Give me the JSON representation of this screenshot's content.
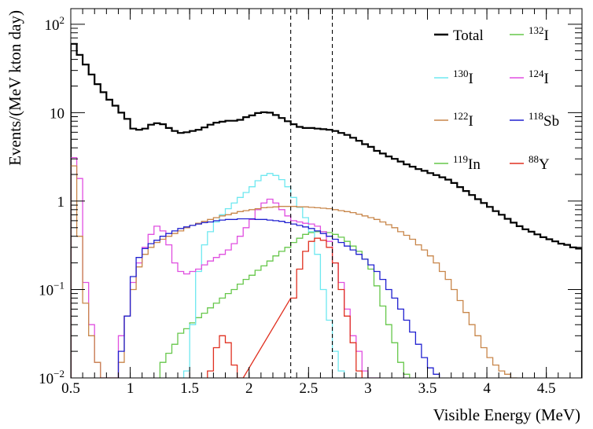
{
  "chart_data": {
    "type": "line",
    "title": "",
    "xlabel": "Visible Energy (MeV)",
    "ylabel": "Events/(MeV kton day)",
    "xlim": [
      0.5,
      4.8
    ],
    "ylim": [
      0.01,
      150
    ],
    "yscale": "log",
    "x_ticks": [
      "0.5",
      "1",
      "1.5",
      "2",
      "2.5",
      "3",
      "3.5",
      "4",
      "4.5"
    ],
    "y_ticks": [
      {
        "base": "10",
        "exp": "−2"
      },
      {
        "base": "10",
        "exp": "−1"
      },
      {
        "base": "1",
        "exp": ""
      },
      {
        "base": "10",
        "exp": ""
      },
      {
        "base": "10",
        "exp": "2"
      }
    ],
    "vlines": [
      2.35,
      2.7
    ],
    "legend_position": "top-right",
    "series": [
      {
        "name": "Total",
        "sup": "",
        "base": "Total",
        "color": "#000000",
        "x": [
          0.5,
          0.55,
          0.6,
          0.65,
          0.7,
          0.75,
          0.8,
          0.85,
          0.9,
          0.95,
          1.0,
          1.05,
          1.1,
          1.15,
          1.2,
          1.25,
          1.3,
          1.35,
          1.4,
          1.45,
          1.5,
          1.55,
          1.6,
          1.65,
          1.7,
          1.75,
          1.8,
          1.85,
          1.9,
          1.95,
          2.0,
          2.05,
          2.1,
          2.15,
          2.2,
          2.25,
          2.3,
          2.35,
          2.4,
          2.45,
          2.5,
          2.55,
          2.6,
          2.65,
          2.7,
          2.75,
          2.8,
          2.85,
          2.9,
          2.95,
          3.0,
          3.05,
          3.1,
          3.15,
          3.2,
          3.25,
          3.3,
          3.35,
          3.4,
          3.45,
          3.5,
          3.55,
          3.6,
          3.65,
          3.7,
          3.75,
          3.8,
          3.85,
          3.9,
          3.95,
          4.0,
          4.05,
          4.1,
          4.15,
          4.2,
          4.25,
          4.3,
          4.35,
          4.4,
          4.45,
          4.5,
          4.55,
          4.6,
          4.65,
          4.7,
          4.75
        ],
        "y": [
          60,
          45,
          35,
          27,
          21,
          17,
          14,
          12,
          10,
          8.5,
          6.6,
          6.4,
          6.6,
          7.3,
          7.6,
          7.4,
          6.7,
          6.2,
          5.9,
          6.0,
          6.2,
          6.4,
          6.8,
          7.3,
          7.7,
          7.9,
          8.1,
          8.1,
          8.3,
          8.9,
          9.3,
          9.9,
          10.1,
          10.0,
          9.4,
          8.7,
          8.0,
          7.4,
          6.9,
          6.7,
          6.7,
          6.6,
          6.5,
          6.4,
          6.2,
          5.9,
          5.6,
          5.2,
          4.8,
          4.4,
          4.1,
          3.7,
          3.45,
          3.2,
          3.0,
          2.8,
          2.6,
          2.45,
          2.3,
          2.2,
          2.07,
          1.97,
          1.86,
          1.75,
          1.6,
          1.44,
          1.3,
          1.17,
          1.05,
          0.95,
          0.86,
          0.77,
          0.7,
          0.63,
          0.57,
          0.52,
          0.48,
          0.45,
          0.42,
          0.39,
          0.37,
          0.35,
          0.33,
          0.32,
          0.3,
          0.29
        ]
      },
      {
        "name": "132I",
        "sup": "132",
        "base": "I",
        "color": "#66c74a",
        "x": [
          1.25,
          1.3,
          1.35,
          1.4,
          1.45,
          1.5,
          1.55,
          1.6,
          1.65,
          1.7,
          1.75,
          1.8,
          1.85,
          1.9,
          1.95,
          2.0,
          2.05,
          2.1,
          2.15,
          2.2,
          2.25,
          2.3,
          2.35,
          2.4,
          2.45,
          2.5,
          2.55,
          2.6,
          2.65,
          2.7,
          2.75,
          2.8,
          2.85,
          2.9,
          2.95,
          3.0,
          3.05,
          3.1,
          3.15,
          3.2,
          3.25,
          3.3
        ],
        "y": [
          0.015,
          0.019,
          0.024,
          0.032,
          0.036,
          0.042,
          0.048,
          0.054,
          0.062,
          0.07,
          0.08,
          0.09,
          0.1,
          0.115,
          0.13,
          0.145,
          0.165,
          0.185,
          0.21,
          0.24,
          0.27,
          0.3,
          0.34,
          0.38,
          0.42,
          0.44,
          0.45,
          0.45,
          0.44,
          0.42,
          0.39,
          0.35,
          0.31,
          0.27,
          0.22,
          0.17,
          0.11,
          0.065,
          0.04,
          0.025,
          0.015,
          0.011
        ]
      },
      {
        "name": "130I",
        "sup": "130",
        "base": "I",
        "color": "#6ee8f0",
        "x": [
          1.45,
          1.5,
          1.55,
          1.6,
          1.65,
          1.7,
          1.75,
          1.8,
          1.85,
          1.9,
          1.95,
          2.0,
          2.05,
          2.1,
          2.15,
          2.2,
          2.25,
          2.3,
          2.35,
          2.4,
          2.45,
          2.5,
          2.55,
          2.6,
          2.65,
          2.7,
          2.75,
          2.8
        ],
        "y": [
          0.012,
          0.04,
          0.16,
          0.32,
          0.45,
          0.58,
          0.7,
          0.82,
          0.95,
          1.1,
          1.25,
          1.45,
          1.7,
          1.95,
          2.05,
          1.95,
          1.75,
          1.45,
          1.1,
          0.85,
          0.65,
          0.45,
          0.25,
          0.1,
          0.045,
          0.02,
          0.012,
          0.01
        ]
      },
      {
        "name": "124I",
        "sup": "124",
        "base": "I",
        "color": "#e04fe0",
        "x": [
          0.5,
          0.55,
          0.6,
          0.65,
          0.7,
          0.75,
          0.8,
          0.85,
          0.9,
          0.95,
          1.0,
          1.05,
          1.1,
          1.15,
          1.2,
          1.25,
          1.3,
          1.35,
          1.4,
          1.45,
          1.5,
          1.55,
          1.6,
          1.65,
          1.7,
          1.75,
          1.8,
          1.85,
          1.9,
          1.95,
          2.0,
          2.05,
          2.1,
          2.15,
          2.2,
          2.25,
          2.3,
          2.35,
          2.4,
          2.45,
          2.5,
          2.55,
          2.6,
          2.65,
          2.7,
          2.75,
          2.8,
          2.85,
          2.9,
          2.95,
          3.0,
          3.05
        ],
        "y": [
          3.1,
          1.8,
          0.12,
          0.04,
          0.015,
          0.01,
          0.01,
          0.01,
          0.03,
          0.05,
          0.12,
          0.2,
          0.3,
          0.42,
          0.52,
          0.46,
          0.32,
          0.2,
          0.16,
          0.15,
          0.16,
          0.17,
          0.19,
          0.21,
          0.23,
          0.25,
          0.28,
          0.33,
          0.4,
          0.5,
          0.62,
          0.8,
          0.95,
          1.05,
          0.95,
          0.8,
          0.68,
          0.6,
          0.58,
          0.56,
          0.55,
          0.52,
          0.45,
          0.35,
          0.2,
          0.12,
          0.06,
          0.03,
          0.02,
          0.012,
          0.01,
          0.01
        ]
      },
      {
        "name": "122I",
        "sup": "122",
        "base": "I",
        "color": "#c8864a",
        "x": [
          0.5,
          0.55,
          0.6,
          0.65,
          0.7,
          0.75,
          0.8,
          0.85,
          0.9,
          0.95,
          1.0,
          1.05,
          1.1,
          1.15,
          1.2,
          1.25,
          1.3,
          1.35,
          1.4,
          1.45,
          1.5,
          1.55,
          1.6,
          1.65,
          1.7,
          1.75,
          1.8,
          1.85,
          1.9,
          1.95,
          2.0,
          2.05,
          2.1,
          2.15,
          2.2,
          2.25,
          2.3,
          2.35,
          2.4,
          2.45,
          2.5,
          2.55,
          2.6,
          2.65,
          2.7,
          2.75,
          2.8,
          2.85,
          2.9,
          2.95,
          3.0,
          3.05,
          3.1,
          3.15,
          3.2,
          3.25,
          3.3,
          3.35,
          3.4,
          3.45,
          3.5,
          3.55,
          3.6,
          3.65,
          3.7,
          3.75,
          3.8,
          3.85,
          3.9,
          3.95,
          4.0,
          4.05,
          4.1,
          4.15,
          4.2
        ],
        "y": [
          2.5,
          0.4,
          0.07,
          0.03,
          0.015,
          0.01,
          0.01,
          0.01,
          0.015,
          0.05,
          0.1,
          0.18,
          0.25,
          0.3,
          0.34,
          0.37,
          0.4,
          0.43,
          0.46,
          0.5,
          0.53,
          0.56,
          0.59,
          0.62,
          0.65,
          0.68,
          0.7,
          0.73,
          0.76,
          0.78,
          0.8,
          0.82,
          0.84,
          0.85,
          0.86,
          0.87,
          0.87,
          0.87,
          0.86,
          0.86,
          0.85,
          0.84,
          0.83,
          0.82,
          0.8,
          0.78,
          0.76,
          0.74,
          0.71,
          0.68,
          0.65,
          0.62,
          0.58,
          0.54,
          0.5,
          0.45,
          0.41,
          0.37,
          0.32,
          0.28,
          0.24,
          0.2,
          0.16,
          0.13,
          0.1,
          0.075,
          0.055,
          0.04,
          0.03,
          0.022,
          0.017,
          0.014,
          0.012,
          0.011,
          0.01
        ]
      },
      {
        "name": "118Sb",
        "sup": "118",
        "base": "Sb",
        "color": "#2020d0",
        "x": [
          0.9,
          0.95,
          1.0,
          1.05,
          1.1,
          1.15,
          1.2,
          1.25,
          1.3,
          1.35,
          1.4,
          1.45,
          1.5,
          1.55,
          1.6,
          1.65,
          1.7,
          1.75,
          1.8,
          1.85,
          1.9,
          1.95,
          2.0,
          2.05,
          2.1,
          2.15,
          2.2,
          2.25,
          2.3,
          2.35,
          2.4,
          2.45,
          2.5,
          2.55,
          2.6,
          2.65,
          2.7,
          2.75,
          2.8,
          2.85,
          2.9,
          2.95,
          3.0,
          3.05,
          3.1,
          3.15,
          3.2,
          3.25,
          3.3,
          3.35,
          3.4,
          3.45,
          3.5,
          3.55
        ],
        "y": [
          0.02,
          0.05,
          0.14,
          0.23,
          0.29,
          0.33,
          0.36,
          0.4,
          0.43,
          0.46,
          0.49,
          0.51,
          0.53,
          0.55,
          0.57,
          0.58,
          0.6,
          0.61,
          0.62,
          0.62,
          0.63,
          0.63,
          0.63,
          0.62,
          0.62,
          0.61,
          0.6,
          0.59,
          0.57,
          0.55,
          0.53,
          0.51,
          0.49,
          0.46,
          0.43,
          0.4,
          0.37,
          0.34,
          0.31,
          0.28,
          0.25,
          0.22,
          0.19,
          0.16,
          0.13,
          0.1,
          0.08,
          0.06,
          0.045,
          0.033,
          0.024,
          0.017,
          0.013,
          0.011
        ]
      },
      {
        "name": "119In",
        "sup": "119",
        "base": "In",
        "color": "#66c74a",
        "x": [],
        "y": []
      },
      {
        "name": "88Y",
        "sup": "88",
        "base": "Y",
        "color": "#e03020",
        "x": [
          1.65,
          1.7,
          1.75,
          1.8,
          1.85,
          1.9,
          2.35,
          2.4,
          2.45,
          2.5,
          2.55,
          2.6,
          2.65,
          2.7,
          2.75,
          2.8,
          2.85,
          2.9
        ],
        "y": [
          0.012,
          0.022,
          0.03,
          0.025,
          0.014,
          0.01,
          0.08,
          0.17,
          0.27,
          0.35,
          0.38,
          0.36,
          0.3,
          0.2,
          0.1,
          0.05,
          0.025,
          0.012
        ]
      }
    ]
  }
}
